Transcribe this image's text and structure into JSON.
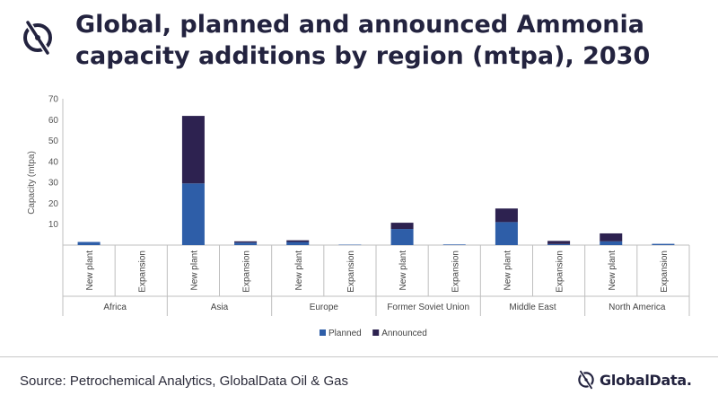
{
  "header": {
    "title": "Global, planned and announced Ammonia capacity additions by region (mtpa), 2030"
  },
  "footer": {
    "source": "Source: Petrochemical Analytics, GlobalData Oil & Gas",
    "brand": "GlobalData."
  },
  "colors": {
    "planned": "#2e5ea8",
    "announced": "#2d2250",
    "brand": "#23233f"
  },
  "chart_data": {
    "type": "bar",
    "stacked": true,
    "title": "Global, planned and announced Ammonia capacity additions by region (mtpa), 2030",
    "ylabel": "Capacity (mtpa)",
    "xlabel": "",
    "ylim": [
      0,
      70
    ],
    "yticks": [
      10,
      20,
      30,
      40,
      50,
      60,
      70
    ],
    "grid": false,
    "legend_position": "bottom",
    "regions": [
      "Africa",
      "Asia",
      "Europe",
      "Former Soviet Union",
      "Middle East",
      "North America"
    ],
    "sub_categories": [
      "New plant",
      "Expansion"
    ],
    "series": [
      {
        "name": "Planned",
        "color": "#2e5ea8",
        "values": [
          [
            1.5,
            0
          ],
          [
            29.5,
            1.2
          ],
          [
            1.5,
            0.2
          ],
          [
            7.7,
            0.3
          ],
          [
            11.0,
            0.5
          ],
          [
            1.8,
            0.6
          ]
        ]
      },
      {
        "name": "Announced",
        "color": "#2d2250",
        "values": [
          [
            0,
            0
          ],
          [
            32.3,
            0.6
          ],
          [
            0.8,
            0
          ],
          [
            3.0,
            0
          ],
          [
            6.5,
            1.5
          ],
          [
            3.8,
            0
          ]
        ]
      }
    ]
  }
}
